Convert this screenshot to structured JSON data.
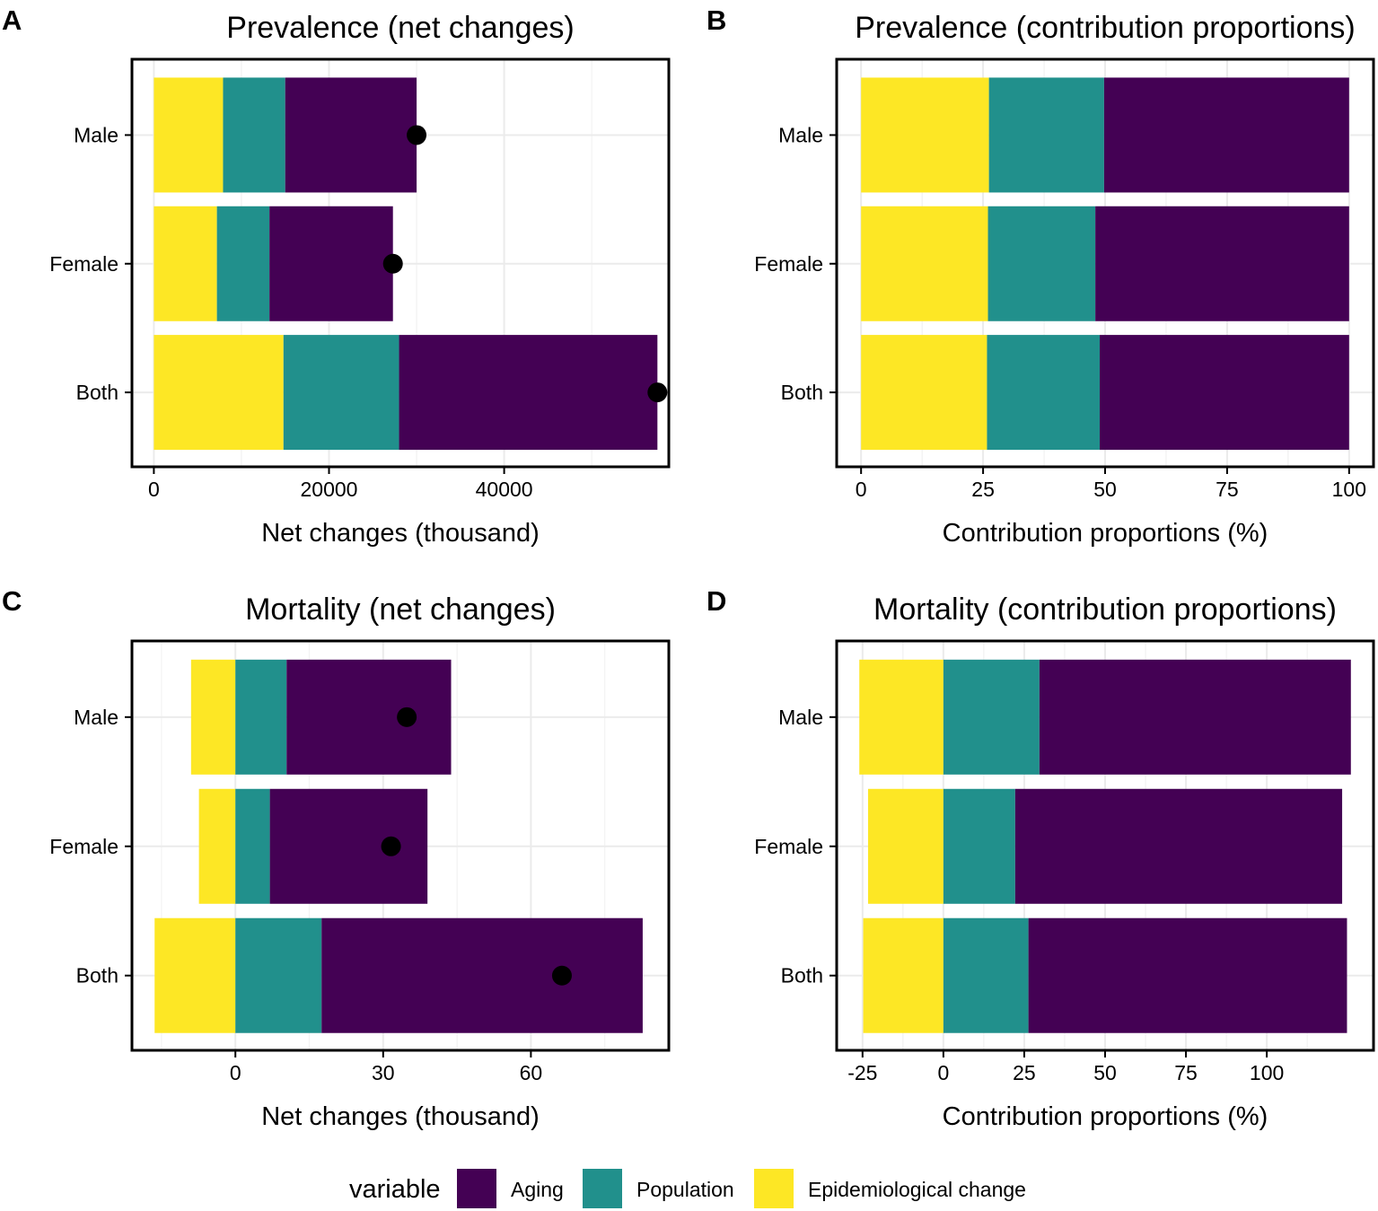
{
  "chart_data": [
    {
      "type": "bar",
      "stacked": true,
      "orientation": "horizontal",
      "panel_letter": "A",
      "title": "Prevalence (net changes)",
      "xlabel": "Net changes (thousand)",
      "ylabel": "",
      "categories": [
        "Male",
        "Female",
        "Both"
      ],
      "xlim": [
        -2500,
        58800
      ],
      "xticks": [
        0,
        20000,
        40000
      ],
      "xtick_labels": [
        "0",
        "20000",
        "40000"
      ],
      "grid": true,
      "series": [
        {
          "name": "Epidemiological change",
          "values": [
            7900,
            7200,
            14800
          ]
        },
        {
          "name": "Population",
          "values": [
            7100,
            6000,
            13200
          ]
        },
        {
          "name": "Aging",
          "values": [
            15000,
            14100,
            29500
          ]
        }
      ],
      "net_points": [
        30000,
        27300,
        57500
      ]
    },
    {
      "type": "bar",
      "stacked": true,
      "orientation": "horizontal",
      "panel_letter": "B",
      "title": "Prevalence (contribution proportions)",
      "xlabel": "Contribution proportions (%)",
      "ylabel": "",
      "categories": [
        "Male",
        "Female",
        "Both"
      ],
      "xlim": [
        -5,
        105
      ],
      "xticks": [
        0,
        25,
        50,
        75,
        100
      ],
      "xtick_labels": [
        "0",
        "25",
        "50",
        "75",
        "100"
      ],
      "grid": true,
      "series": [
        {
          "name": "Epidemiological change",
          "values": [
            26.2,
            26.0,
            25.8
          ]
        },
        {
          "name": "Population",
          "values": [
            23.6,
            22.0,
            23.1
          ]
        },
        {
          "name": "Aging",
          "values": [
            50.2,
            52.0,
            51.1
          ]
        }
      ]
    },
    {
      "type": "bar",
      "stacked": true,
      "orientation": "horizontal",
      "panel_letter": "C",
      "title": "Mortality (net changes)",
      "xlabel": "Net changes (thousand)",
      "ylabel": "",
      "categories": [
        "Male",
        "Female",
        "Both"
      ],
      "xlim": [
        -21,
        88
      ],
      "xticks": [
        0,
        30,
        60
      ],
      "xtick_labels": [
        "0",
        "30",
        "60"
      ],
      "grid": true,
      "series": [
        {
          "name": "Epidemiological change",
          "values": [
            -9.0,
            -7.4,
            -16.4
          ]
        },
        {
          "name": "Population",
          "values": [
            10.4,
            7.0,
            17.5
          ]
        },
        {
          "name": "Aging",
          "values": [
            33.4,
            32.0,
            65.2
          ]
        }
      ],
      "net_points": [
        34.8,
        31.6,
        66.3
      ]
    },
    {
      "type": "bar",
      "stacked": true,
      "orientation": "horizontal",
      "panel_letter": "D",
      "title": "Mortality (contribution proportions)",
      "xlabel": "Contribution proportions (%)",
      "ylabel": "",
      "categories": [
        "Male",
        "Female",
        "Both"
      ],
      "xlim": [
        -33,
        133
      ],
      "xticks": [
        -25,
        0,
        25,
        50,
        75,
        100
      ],
      "xtick_labels": [
        "-25",
        "0",
        "25",
        "50",
        "75",
        "100"
      ],
      "grid": true,
      "series": [
        {
          "name": "Epidemiological change",
          "values": [
            -26.0,
            -23.3,
            -24.8
          ]
        },
        {
          "name": "Population",
          "values": [
            29.7,
            22.2,
            26.3
          ]
        },
        {
          "name": "Aging",
          "values": [
            96.3,
            101.1,
            98.5
          ]
        }
      ]
    }
  ],
  "legend": {
    "title": "variable",
    "position": "bottom",
    "items": [
      {
        "label": "Aging",
        "color": "#440154"
      },
      {
        "label": "Population",
        "color": "#21908C"
      },
      {
        "label": "Epidemiological change",
        "color": "#FDE725"
      }
    ]
  },
  "colors": {
    "aging": "#440154",
    "population": "#21908C",
    "epidemiological": "#FDE725",
    "point": "#000000",
    "grid": "#EBEBEB",
    "frame": "#000000"
  }
}
